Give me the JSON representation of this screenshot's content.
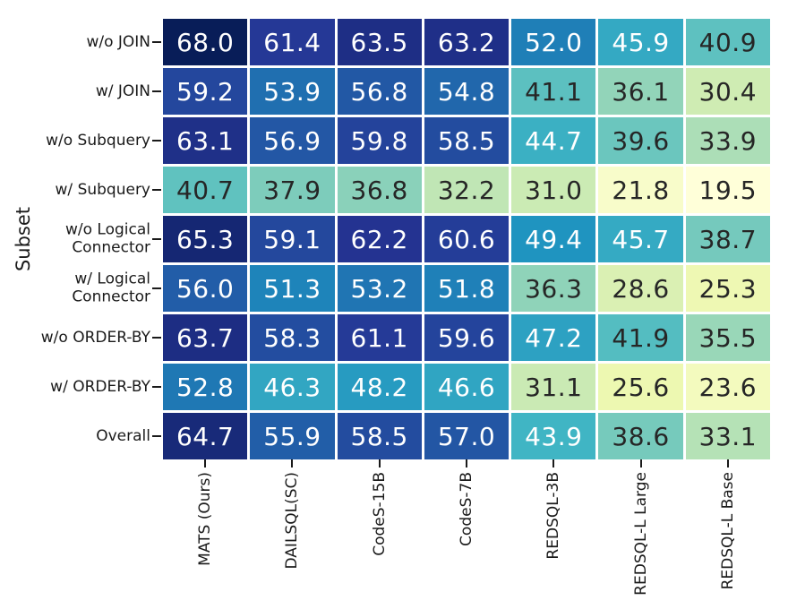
{
  "chart_data": {
    "type": "heatmap",
    "title": "",
    "xlabel": "",
    "ylabel": "Subset",
    "legend": "none",
    "grid_line_color": "#ffffff",
    "tick_color": "#1a1a1a",
    "label_color": "#1a1a1a",
    "columns": [
      "MATS (Ours)",
      "DAILSQL(SC)",
      "CodeS-15B",
      "CodeS-7B",
      "REDSQL-3B",
      "REDSQL-L Large",
      "REDSQL-L Base"
    ],
    "rows": [
      {
        "label": "w/o JOIN",
        "values": [
          68.0,
          61.4,
          63.5,
          63.2,
          52.0,
          45.9,
          40.9
        ]
      },
      {
        "label": "w/ JOIN",
        "values": [
          59.2,
          53.9,
          56.8,
          54.8,
          41.1,
          36.1,
          30.4
        ]
      },
      {
        "label": "w/o Subquery",
        "values": [
          63.1,
          56.9,
          59.8,
          58.5,
          44.7,
          39.6,
          33.9
        ]
      },
      {
        "label": "w/ Subquery",
        "values": [
          40.7,
          37.9,
          36.8,
          32.2,
          31.0,
          21.8,
          19.5
        ]
      },
      {
        "label": "w/o Logical\nConnector",
        "values": [
          65.3,
          59.1,
          62.2,
          60.6,
          49.4,
          45.7,
          38.7
        ]
      },
      {
        "label": "w/ Logical\nConnector",
        "values": [
          56.0,
          51.3,
          53.2,
          51.8,
          36.3,
          28.6,
          25.3
        ]
      },
      {
        "label": "w/o ORDER-BY",
        "values": [
          63.7,
          58.3,
          61.1,
          59.6,
          47.2,
          41.9,
          35.5
        ]
      },
      {
        "label": "w/ ORDER-BY",
        "values": [
          52.8,
          46.3,
          48.2,
          46.6,
          31.1,
          25.6,
          23.6
        ]
      },
      {
        "label": "Overall",
        "values": [
          64.7,
          55.9,
          58.5,
          57.0,
          43.9,
          38.6,
          33.1
        ]
      }
    ],
    "colormap": {
      "name": "YlGnBu",
      "vmin": 19.5,
      "vmax": 68.0,
      "anchors": [
        "#ffffd9",
        "#edf8b1",
        "#c7e9b4",
        "#7fcdbb",
        "#41b6c4",
        "#1d91c0",
        "#225ea8",
        "#253494",
        "#081d58"
      ]
    },
    "annotation": {
      "decimals": 1,
      "light_text": "#ffffff",
      "dark_text": "#262626",
      "light_text_min_value": 43
    }
  }
}
